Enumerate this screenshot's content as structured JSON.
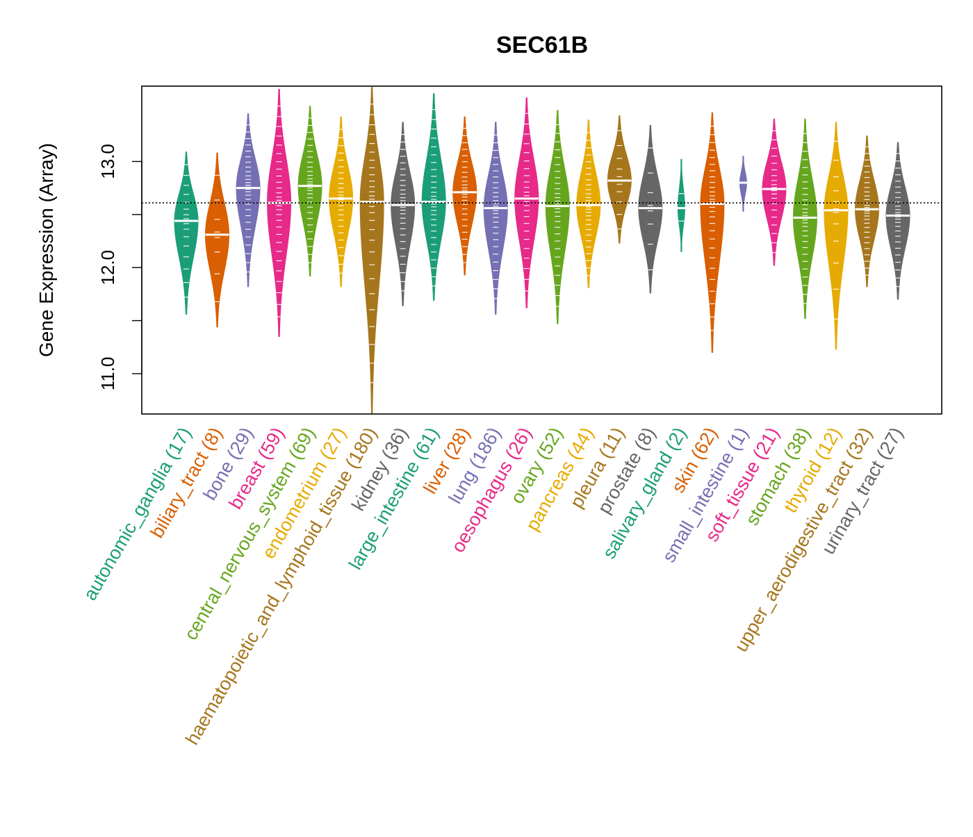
{
  "chart_data": {
    "type": "beanplot",
    "title": "SEC61B",
    "xlabel": "",
    "ylabel": "Gene Expression (Array)",
    "ylim": [
      10.62,
      13.71
    ],
    "yticks": [
      11.0,
      11.5,
      12.0,
      12.5,
      13.0
    ],
    "ytick_labels": [
      "11.0",
      "",
      "12.0",
      "",
      "13.0"
    ],
    "reference_line": 12.61,
    "grid": false,
    "palette": [
      "#1B9E77",
      "#D95F02",
      "#7570B3",
      "#E7298A",
      "#66A61E",
      "#E6AB02",
      "#A6761D",
      "#666666"
    ],
    "groups": [
      {
        "name": "autonomic_ganglia",
        "n": 17,
        "label": "autonomic_ganglia (17)",
        "median": 12.44,
        "min": 11.56,
        "max": 13.09
      },
      {
        "name": "biliary_tract",
        "n": 8,
        "label": "biliary_tract (8)",
        "median": 12.31,
        "min": 11.44,
        "max": 13.08
      },
      {
        "name": "bone",
        "n": 29,
        "label": "bone (29)",
        "median": 12.75,
        "min": 11.82,
        "max": 13.45
      },
      {
        "name": "breast",
        "n": 59,
        "label": "breast (59)",
        "median": 12.61,
        "min": 11.35,
        "max": 13.68
      },
      {
        "name": "central_nervous_system",
        "n": 69,
        "label": "central_nervous_system (69)",
        "median": 12.77,
        "min": 11.92,
        "max": 13.52
      },
      {
        "name": "endometrium",
        "n": 27,
        "label": "endometrium (27)",
        "median": 12.65,
        "min": 11.82,
        "max": 13.42
      },
      {
        "name": "haematopoietic_and_lymphoid_tissue",
        "n": 180,
        "label": "haematopoietic_and_lymphoid_tissue (180)",
        "median": 12.62,
        "min": 10.62,
        "max": 13.7
      },
      {
        "name": "kidney",
        "n": 36,
        "label": "kidney (36)",
        "median": 12.59,
        "min": 11.64,
        "max": 13.37
      },
      {
        "name": "large_intestine",
        "n": 61,
        "label": "large_intestine (61)",
        "median": 12.62,
        "min": 11.69,
        "max": 13.64
      },
      {
        "name": "liver",
        "n": 28,
        "label": "liver (28)",
        "median": 12.71,
        "min": 11.93,
        "max": 13.42
      },
      {
        "name": "lung",
        "n": 186,
        "label": "lung (186)",
        "median": 12.56,
        "min": 11.56,
        "max": 13.37
      },
      {
        "name": "oesophagus",
        "n": 26,
        "label": "oesophagus (26)",
        "median": 12.65,
        "min": 11.62,
        "max": 13.6
      },
      {
        "name": "ovary",
        "n": 52,
        "label": "ovary (52)",
        "median": 12.58,
        "min": 11.47,
        "max": 13.48
      },
      {
        "name": "pancreas",
        "n": 44,
        "label": "pancreas (44)",
        "median": 12.59,
        "min": 11.81,
        "max": 13.39
      },
      {
        "name": "pleura",
        "n": 11,
        "label": "pleura (11)",
        "median": 12.82,
        "min": 12.23,
        "max": 13.43
      },
      {
        "name": "prostate",
        "n": 8,
        "label": "prostate (8)",
        "median": 12.56,
        "min": 11.76,
        "max": 13.34
      },
      {
        "name": "salivary_gland",
        "n": 2,
        "label": "salivary_gland (2)",
        "median": 12.56,
        "min": 12.15,
        "max": 13.02
      },
      {
        "name": "skin",
        "n": 62,
        "label": "skin (62)",
        "median": 12.6,
        "min": 11.2,
        "max": 13.46
      },
      {
        "name": "small_intestine",
        "n": 1,
        "label": "small_intestine (1)",
        "median": 12.8,
        "min": 12.53,
        "max": 13.05
      },
      {
        "name": "soft_tissue",
        "n": 21,
        "label": "soft_tissue (21)",
        "median": 12.74,
        "min": 12.02,
        "max": 13.4
      },
      {
        "name": "stomach",
        "n": 38,
        "label": "stomach (38)",
        "median": 12.47,
        "min": 11.52,
        "max": 13.4
      },
      {
        "name": "thyroid",
        "n": 12,
        "label": "thyroid (12)",
        "median": 12.54,
        "min": 11.23,
        "max": 13.37
      },
      {
        "name": "upper_aerodigestive_tract",
        "n": 32,
        "label": "upper_aerodigestive_tract (32)",
        "median": 12.55,
        "min": 11.82,
        "max": 13.24
      },
      {
        "name": "urinary_tract",
        "n": 27,
        "label": "urinary_tract (27)",
        "median": 12.49,
        "min": 11.7,
        "max": 13.18
      }
    ]
  }
}
